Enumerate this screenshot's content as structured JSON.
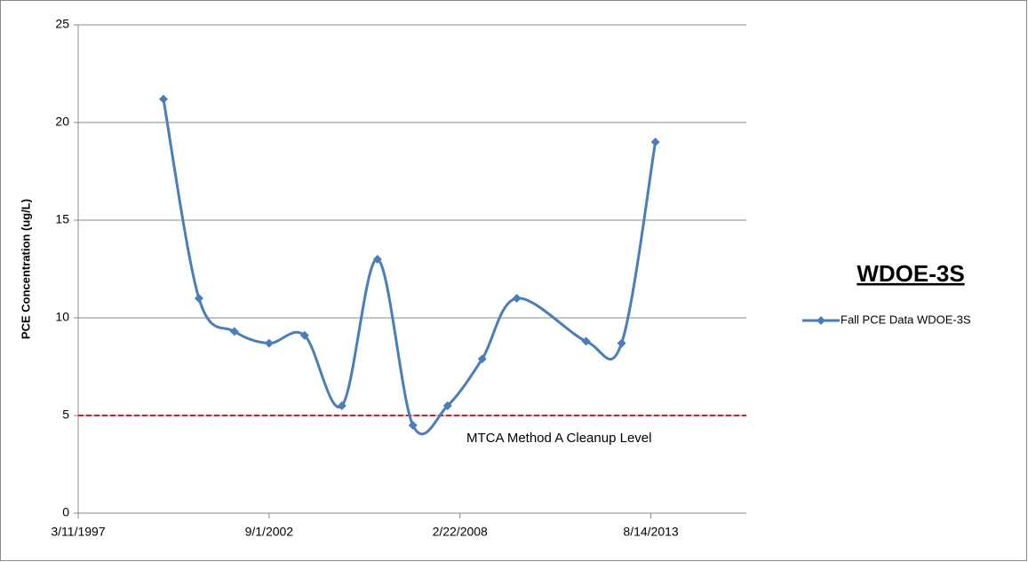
{
  "chart_data": {
    "type": "line",
    "title": "WDOE-3S",
    "y_label": "PCE Concentration (ug/L)",
    "x": [
      36393,
      36765,
      37137,
      37500,
      37872,
      38263,
      38635,
      39007,
      39370,
      39733,
      40095,
      40821,
      41193,
      41547
    ],
    "series": [
      {
        "name": "Fall PCE Data  WDOE-3S",
        "color": "#4a7ebb",
        "values": [
          21.2,
          11,
          9.3,
          8.7,
          9.1,
          5.5,
          13,
          4.5,
          5.5,
          7.9,
          11,
          8.8,
          8.7,
          19
        ]
      }
    ],
    "xlim": [
      35500,
      42500
    ],
    "xticks": [
      {
        "value": 35500,
        "label": "3/11/1997"
      },
      {
        "value": 37500,
        "label": "9/1/2002"
      },
      {
        "value": 39500,
        "label": "2/22/2008"
      },
      {
        "value": 41500,
        "label": "8/14/2013"
      }
    ],
    "ylim": [
      0,
      25
    ],
    "yticks": [
      0,
      5,
      10,
      15,
      20,
      25
    ],
    "grid": true,
    "smooth": true,
    "legend": "right",
    "reference_lines": [
      {
        "value": 5,
        "label": "MTCA Method A Cleanup Level",
        "color": "#e31a1c"
      }
    ]
  }
}
